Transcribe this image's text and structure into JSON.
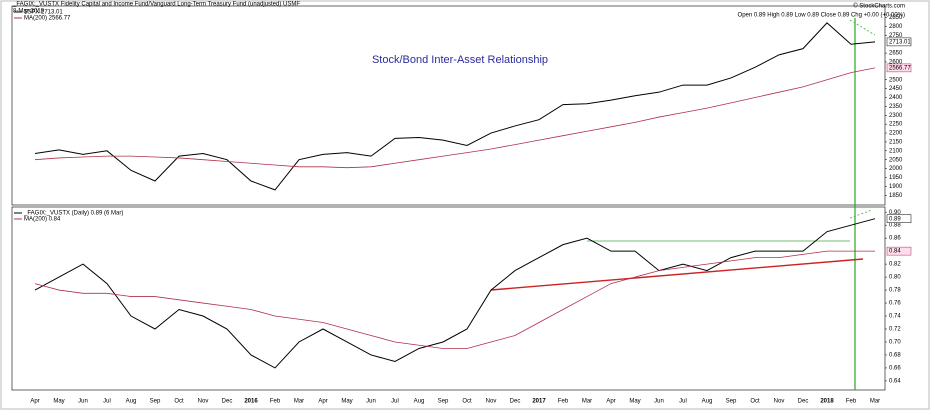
{
  "chart_data": [
    {
      "type": "line",
      "title": "_FAGIX:_VUSTX Fidelity Capital and Income Fund/Vanguard Long-Term Treasury Fund (unadjusted) USMF",
      "subtitle": "8-Mar-2018",
      "quote": "Open 0.89 High 0.89 Low 0.89 Close 0.89 Chg +0.00 (+0.00%)",
      "credit": "© StockCharts.com",
      "annotation": "Stock/Bond Inter-Asset  Relationship",
      "series": [
        {
          "name": "$SPX 2713.01",
          "color": "#000000",
          "values": [
            2085,
            2105,
            2080,
            2100,
            1990,
            1930,
            2070,
            2085,
            2050,
            1930,
            1880,
            2050,
            2080,
            2090,
            2070,
            2170,
            2175,
            2160,
            2130,
            2200,
            2240,
            2275,
            2360,
            2365,
            2385,
            2410,
            2430,
            2470,
            2470,
            2510,
            2570,
            2640,
            2675,
            2820,
            2700,
            2713.01
          ]
        },
        {
          "name": "MA(200) 2566.77",
          "color": "#b0304a",
          "values": [
            2050,
            2060,
            2065,
            2070,
            2070,
            2065,
            2060,
            2050,
            2040,
            2030,
            2020,
            2010,
            2010,
            2005,
            2010,
            2030,
            2050,
            2070,
            2090,
            2110,
            2135,
            2160,
            2185,
            2210,
            2235,
            2260,
            2290,
            2315,
            2340,
            2370,
            2400,
            2430,
            2460,
            2500,
            2540,
            2566.77
          ]
        }
      ],
      "ylim": [
        1795,
        2915
      ],
      "yticks": [
        1850,
        1900,
        1950,
        2000,
        2050,
        2100,
        2150,
        2200,
        2250,
        2300,
        2350,
        2400,
        2450,
        2500,
        2600,
        2650,
        2750,
        2800,
        2850
      ]
    },
    {
      "type": "line",
      "categories": [
        "Apr",
        "May",
        "Jun",
        "Jul",
        "Aug",
        "Sep",
        "Oct",
        "Nov",
        "Dec",
        "2016",
        "Feb",
        "Mar",
        "Apr",
        "May",
        "Jun",
        "Jul",
        "Aug",
        "Sep",
        "Oct",
        "Nov",
        "Dec",
        "2017",
        "Feb",
        "Mar",
        "Apr",
        "May",
        "Jun",
        "Jul",
        "Aug",
        "Sep",
        "Oct",
        "Nov",
        "Dec",
        "2018",
        "Feb",
        "Mar"
      ],
      "series": [
        {
          "name": "_FAGIX:_VUSTX (Daily) 0.89 (6 Mar)",
          "color": "#000000",
          "values": [
            0.78,
            0.8,
            0.82,
            0.79,
            0.74,
            0.72,
            0.75,
            0.74,
            0.72,
            0.68,
            0.66,
            0.7,
            0.72,
            0.7,
            0.68,
            0.67,
            0.69,
            0.7,
            0.72,
            0.78,
            0.81,
            0.83,
            0.85,
            0.86,
            0.84,
            0.84,
            0.81,
            0.82,
            0.81,
            0.83,
            0.84,
            0.84,
            0.84,
            0.87,
            0.88,
            0.89
          ]
        },
        {
          "name": "MA(200) 0.84",
          "color": "#b0304a",
          "values": [
            0.79,
            0.78,
            0.775,
            0.775,
            0.77,
            0.77,
            0.765,
            0.76,
            0.755,
            0.75,
            0.74,
            0.735,
            0.73,
            0.72,
            0.71,
            0.7,
            0.695,
            0.69,
            0.69,
            0.7,
            0.71,
            0.73,
            0.75,
            0.77,
            0.79,
            0.8,
            0.81,
            0.815,
            0.82,
            0.825,
            0.83,
            0.83,
            0.835,
            0.84,
            0.84,
            0.84
          ]
        }
      ],
      "ylim": [
        0.626,
        0.908
      ],
      "yticks": [
        0.64,
        0.66,
        0.68,
        {
          "value": 0.7,
          "label": "0.70"
        },
        0.72,
        0.74,
        0.76,
        0.78,
        {
          "value": 0.8,
          "label": "0.80"
        },
        0.82,
        0.86,
        0.88,
        {
          "value": 0.9,
          "label": "0.90"
        }
      ]
    }
  ]
}
